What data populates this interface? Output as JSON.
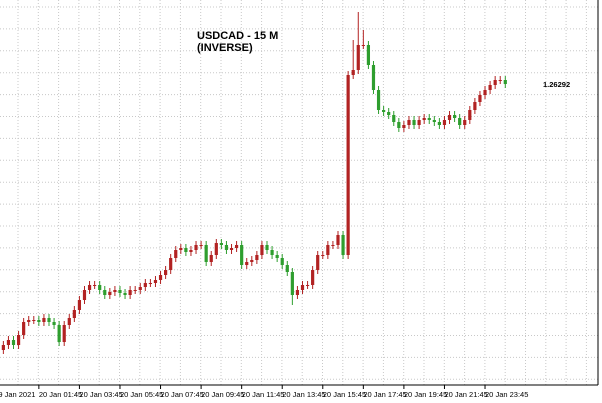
{
  "chart_data": {
    "type": "candlestick",
    "title": "USDCAD - 15 M",
    "subtitle": "(INVERSE)",
    "last_price": 1.26292,
    "up_color": "#2e9e2e",
    "down_color": "#b22222",
    "ylim": [
      1.26894,
      1.26124
    ],
    "categories": [
      "9 Jan 2021",
      null,
      null,
      null,
      null,
      null,
      null,
      null,
      "20 Jan 01:45",
      null,
      null,
      null,
      null,
      null,
      null,
      null,
      "20 Jan 03:45",
      null,
      null,
      null,
      null,
      null,
      null,
      null,
      "20 Jan 05:45",
      null,
      null,
      null,
      null,
      null,
      null,
      null,
      "20 Jan 07:45",
      null,
      null,
      null,
      null,
      null,
      null,
      null,
      "20 Jan 09:45",
      null,
      null,
      null,
      null,
      null,
      null,
      null,
      "20 Jan 11:45",
      null,
      null,
      null,
      null,
      null,
      null,
      null,
      "20 Jan 13:45",
      null,
      null,
      null,
      null,
      null,
      null,
      null,
      "20 Jan 15:45",
      null,
      null,
      null,
      null,
      null,
      null,
      null,
      "20 Jan 17:45",
      null,
      null,
      null,
      null,
      null,
      null,
      null,
      "20 Jan 19:45",
      null,
      null,
      null,
      null,
      null,
      null,
      null,
      "20 Jan 21:45",
      null,
      null,
      null,
      null,
      null,
      null,
      null,
      "20 Jan 23:45",
      null,
      null,
      null,
      null
    ],
    "open": [
      1.26834,
      1.26824,
      1.26814,
      1.26804,
      1.26814,
      1.26794,
      1.26768,
      1.26764,
      1.26764,
      1.26768,
      1.2676,
      1.26768,
      1.26774,
      1.26808,
      1.26774,
      1.2676,
      1.26744,
      1.26724,
      1.26704,
      1.26694,
      1.26694,
      1.26704,
      1.26714,
      1.26708,
      1.26704,
      1.2671,
      1.26714,
      1.26704,
      1.26704,
      1.26698,
      1.2669,
      1.2669,
      1.26684,
      1.26674,
      1.26664,
      1.2664,
      1.26624,
      1.2662,
      1.26628,
      1.26624,
      1.26614,
      1.26614,
      1.26648,
      1.26634,
      1.2661,
      1.26614,
      1.26624,
      1.2662,
      1.26614,
      1.26654,
      1.26648,
      1.26644,
      1.26634,
      1.26614,
      1.26624,
      1.26634,
      1.2664,
      1.26654,
      1.26668,
      1.26714,
      1.26704,
      1.26694,
      1.26694,
      1.26664,
      1.26634,
      1.26634,
      1.26614,
      1.26614,
      1.26594,
      1.26634,
      1.26274,
      1.26264,
      1.26214,
      1.26214,
      1.26254,
      1.26304,
      1.26344,
      1.26348,
      1.26354,
      1.26368,
      1.2638,
      1.26374,
      1.26364,
      1.26374,
      1.26364,
      1.2636,
      1.26364,
      1.26368,
      1.26374,
      1.26364,
      1.26354,
      1.2636,
      1.26374,
      1.26364,
      1.26344,
      1.26328,
      1.26314,
      1.26304,
      1.26294,
      1.26284,
      1.26284
    ],
    "high": [
      1.26842,
      1.26832,
      1.26822,
      1.26822,
      1.26822,
      1.26802,
      1.26776,
      1.26772,
      1.26776,
      1.26776,
      1.26776,
      1.26782,
      1.26816,
      1.26816,
      1.26782,
      1.26768,
      1.26752,
      1.26732,
      1.26712,
      1.26702,
      1.26712,
      1.26722,
      1.26722,
      1.26716,
      1.26718,
      1.26722,
      1.26722,
      1.26712,
      1.26712,
      1.26706,
      1.26698,
      1.26698,
      1.26692,
      1.26682,
      1.26672,
      1.26648,
      1.26632,
      1.26636,
      1.26636,
      1.26632,
      1.26622,
      1.26656,
      1.26656,
      1.26642,
      1.26622,
      1.26632,
      1.26632,
      1.26628,
      1.26662,
      1.26662,
      1.26656,
      1.26652,
      1.26642,
      1.26632,
      1.26642,
      1.26648,
      1.26662,
      1.26676,
      1.26734,
      1.26722,
      1.26712,
      1.26702,
      1.26702,
      1.26672,
      1.26642,
      1.26642,
      1.26622,
      1.26622,
      1.26642,
      1.26642,
      1.26282,
      1.26272,
      1.26222,
      1.26262,
      1.26312,
      1.26352,
      1.26356,
      1.26362,
      1.26376,
      1.26388,
      1.26388,
      1.26382,
      1.26382,
      1.26382,
      1.26372,
      1.26372,
      1.26376,
      1.26382,
      1.26382,
      1.26372,
      1.26368,
      1.26382,
      1.26382,
      1.26372,
      1.26352,
      1.26336,
      1.26322,
      1.26312,
      1.26302,
      1.26292,
      1.263
    ],
    "low": [
      1.26816,
      1.26806,
      1.26796,
      1.26796,
      1.26786,
      1.2676,
      1.26756,
      1.26756,
      1.26756,
      1.26752,
      1.26752,
      1.2676,
      1.26766,
      1.26766,
      1.26752,
      1.26736,
      1.26716,
      1.26696,
      1.26686,
      1.26686,
      1.26686,
      1.26696,
      1.267,
      1.26696,
      1.26696,
      1.26702,
      1.26696,
      1.26696,
      1.2669,
      1.26682,
      1.26682,
      1.26676,
      1.26666,
      1.26656,
      1.26632,
      1.26616,
      1.26612,
      1.26612,
      1.26616,
      1.26606,
      1.26606,
      1.26606,
      1.26626,
      1.26602,
      1.26602,
      1.26606,
      1.26612,
      1.26606,
      1.26606,
      1.2664,
      1.26636,
      1.26626,
      1.26606,
      1.26606,
      1.26616,
      1.26626,
      1.26632,
      1.26646,
      1.2666,
      1.26696,
      1.26686,
      1.26686,
      1.26656,
      1.26626,
      1.26626,
      1.26606,
      1.26606,
      1.26586,
      1.26586,
      1.26266,
      1.26204,
      1.26148,
      1.26184,
      1.26206,
      1.26246,
      1.26296,
      1.26336,
      1.2634,
      1.26346,
      1.2636,
      1.26366,
      1.26356,
      1.26356,
      1.26356,
      1.26352,
      1.26352,
      1.26356,
      1.2636,
      1.26356,
      1.26346,
      1.26346,
      1.26352,
      1.26356,
      1.26336,
      1.2632,
      1.26306,
      1.26296,
      1.26286,
      1.26276,
      1.26276,
      1.26276
    ],
    "close": [
      1.26824,
      1.26814,
      1.26804,
      1.26814,
      1.26794,
      1.26768,
      1.26764,
      1.26764,
      1.26768,
      1.2676,
      1.26768,
      1.26774,
      1.26808,
      1.26774,
      1.2676,
      1.26744,
      1.26724,
      1.26704,
      1.26694,
      1.26694,
      1.26704,
      1.26714,
      1.26708,
      1.26704,
      1.2671,
      1.26714,
      1.26704,
      1.26704,
      1.26698,
      1.2669,
      1.2669,
      1.26684,
      1.26674,
      1.26664,
      1.2664,
      1.26624,
      1.2662,
      1.26628,
      1.26624,
      1.26614,
      1.26614,
      1.26648,
      1.26634,
      1.2661,
      1.26614,
      1.26624,
      1.2662,
      1.26614,
      1.26654,
      1.26648,
      1.26644,
      1.26634,
      1.26614,
      1.26624,
      1.26634,
      1.2664,
      1.26654,
      1.26668,
      1.26714,
      1.26704,
      1.26694,
      1.26694,
      1.26664,
      1.26634,
      1.26634,
      1.26614,
      1.26614,
      1.26594,
      1.26634,
      1.26274,
      1.26264,
      1.26214,
      1.26214,
      1.26254,
      1.26304,
      1.26344,
      1.26348,
      1.26354,
      1.26368,
      1.2638,
      1.26374,
      1.26364,
      1.26374,
      1.26364,
      1.2636,
      1.26364,
      1.26368,
      1.26374,
      1.26364,
      1.26354,
      1.2636,
      1.26374,
      1.26364,
      1.26344,
      1.26328,
      1.26314,
      1.26304,
      1.26294,
      1.26284,
      1.26284,
      1.26292
    ]
  }
}
